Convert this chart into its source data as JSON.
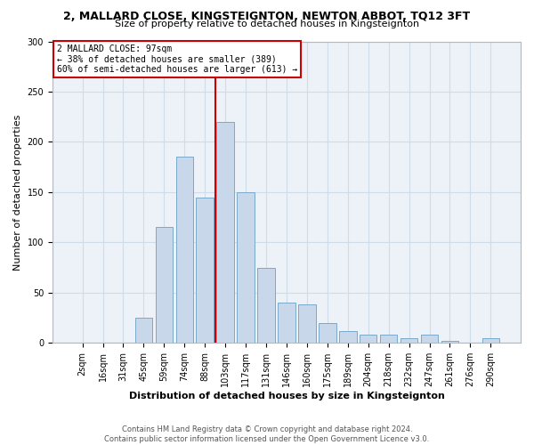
{
  "title1": "2, MALLARD CLOSE, KINGSTEIGNTON, NEWTON ABBOT, TQ12 3FT",
  "title2": "Size of property relative to detached houses in Kingsteignton",
  "xlabel": "Distribution of detached houses by size in Kingsteignton",
  "ylabel": "Number of detached properties",
  "footnote": "Contains HM Land Registry data © Crown copyright and database right 2024.\nContains public sector information licensed under the Open Government Licence v3.0.",
  "categories": [
    "2sqm",
    "16sqm",
    "31sqm",
    "45sqm",
    "59sqm",
    "74sqm",
    "88sqm",
    "103sqm",
    "117sqm",
    "131sqm",
    "146sqm",
    "160sqm",
    "175sqm",
    "189sqm",
    "204sqm",
    "218sqm",
    "232sqm",
    "247sqm",
    "261sqm",
    "276sqm",
    "290sqm"
  ],
  "bar_values": [
    0,
    0,
    0,
    25,
    115,
    185,
    145,
    220,
    150,
    75,
    40,
    38,
    20,
    12,
    8,
    8,
    5,
    8,
    2,
    0,
    5
  ],
  "bar_color": "#c8d8ea",
  "bar_edge_color": "#7aaac8",
  "grid_color": "#d0dce8",
  "fig_background": "#ffffff",
  "axes_background": "#edf2f8",
  "vline_color": "#cc0000",
  "vline_xidx": 6.5,
  "annotation_text": "2 MALLARD CLOSE: 97sqm\n← 38% of detached houses are smaller (389)\n60% of semi-detached houses are larger (613) →",
  "ylim": [
    0,
    300
  ],
  "yticks": [
    0,
    50,
    100,
    150,
    200,
    250,
    300
  ],
  "title1_fontsize": 9,
  "title2_fontsize": 8,
  "ylabel_fontsize": 8,
  "xlabel_fontsize": 8,
  "tick_fontsize": 7,
  "annot_fontsize": 7,
  "footnote_fontsize": 6
}
